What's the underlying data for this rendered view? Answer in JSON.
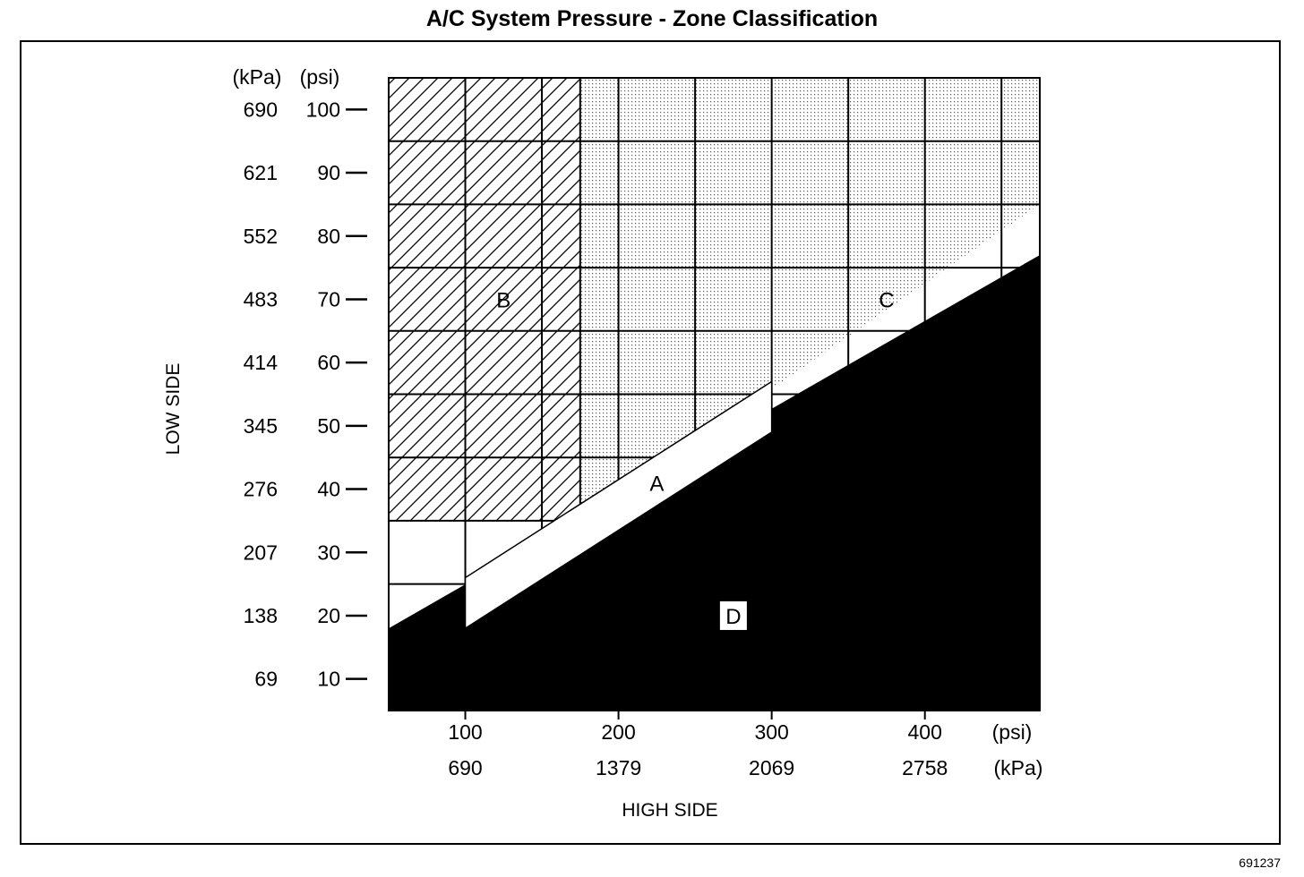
{
  "chart_data": {
    "type": "area",
    "title": "A/C System Pressure - Zone Classification",
    "xlabel": "HIGH SIDE",
    "ylabel": "LOW SIDE",
    "x_unit_primary": "(psi)",
    "x_unit_secondary": "(kPa)",
    "y_unit_secondary": "(kPa)",
    "y_unit_primary": "(psi)",
    "xlim": [
      50,
      475
    ],
    "ylim": [
      5,
      105
    ],
    "x_grid": [
      100,
      150,
      175,
      200,
      250,
      300,
      350,
      400,
      450
    ],
    "y_grid": [
      10,
      15,
      25,
      35,
      45,
      55,
      65,
      75,
      85,
      95,
      105
    ],
    "x_ticks": [
      {
        "psi": "100",
        "kpa": "690"
      },
      {
        "psi": "200",
        "kpa": "1379"
      },
      {
        "psi": "300",
        "kpa": "2069"
      },
      {
        "psi": "400",
        "kpa": "2758"
      }
    ],
    "y_ticks": [
      {
        "psi": "100",
        "kpa": "690"
      },
      {
        "psi": "90",
        "kpa": "621"
      },
      {
        "psi": "80",
        "kpa": "552"
      },
      {
        "psi": "70",
        "kpa": "483"
      },
      {
        "psi": "60",
        "kpa": "414"
      },
      {
        "psi": "50",
        "kpa": "345"
      },
      {
        "psi": "40",
        "kpa": "276"
      },
      {
        "psi": "30",
        "kpa": "207"
      },
      {
        "psi": "20",
        "kpa": "138"
      },
      {
        "psi": "10",
        "kpa": "69"
      }
    ],
    "zones": [
      {
        "label": "B",
        "fill": "hatched",
        "points": [
          [
            50,
            105
          ],
          [
            175,
            105
          ],
          [
            175,
            35
          ],
          [
            50,
            35
          ]
        ],
        "label_at": [
          125,
          70
        ]
      },
      {
        "label": "C",
        "fill": "dotted",
        "points": [
          [
            175,
            105
          ],
          [
            475,
            105
          ],
          [
            475,
            85
          ],
          [
            175,
            35
          ]
        ],
        "label_at": [
          375,
          70
        ]
      },
      {
        "label": "D",
        "fill": "black",
        "points": [
          [
            50,
            5
          ],
          [
            475,
            5
          ],
          [
            475,
            77
          ],
          [
            50,
            18
          ]
        ],
        "label_at": [
          275,
          20
        ],
        "label_boxed": true
      },
      {
        "label": "A",
        "fill": "white",
        "points": [
          [
            100,
            18
          ],
          [
            300,
            49
          ],
          [
            300,
            57
          ],
          [
            100,
            26
          ]
        ],
        "label_at": [
          225,
          41
        ]
      }
    ],
    "background_pattern_extent": {
      "x": [
        50,
        475
      ],
      "y": [
        5,
        105
      ]
    },
    "dotted_region_corner": [
      175,
      105,
      475,
      77
    ]
  },
  "figure_id": "691237"
}
